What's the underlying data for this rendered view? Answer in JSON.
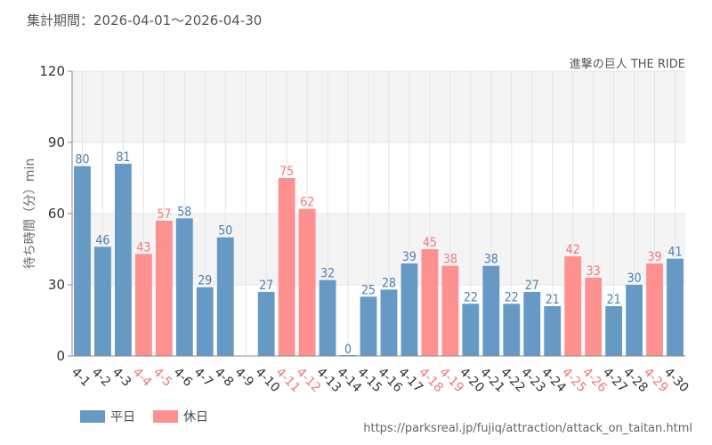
{
  "header": {
    "period": "集計期間：2026-04-01〜2026-04-30"
  },
  "source_url": "https://parksreal.jp/fujiq/attraction/attack_on_taitan.html",
  "colors": {
    "weekday": "#6699c4",
    "holiday": "#ff9090",
    "weekday_text": "#4a7eac",
    "holiday_text": "#f07878",
    "band": "#f4f4f4",
    "grid": "#e4e4e4"
  },
  "chart_data": {
    "type": "bar",
    "title": "進撃の巨人 THE RIDE",
    "ylabel": "待ち時間（分）min",
    "xlabel": "",
    "ylim": [
      0,
      120
    ],
    "yticks": [
      0,
      30,
      60,
      90,
      120
    ],
    "grid": true,
    "legend_placement": "bottom-left",
    "legend": [
      {
        "name": "平日",
        "color": "#6699c4"
      },
      {
        "name": "休日",
        "color": "#ff9090"
      }
    ],
    "categories": [
      "4-1",
      "4-2",
      "4-3",
      "4-4",
      "4-5",
      "4-6",
      "4-7",
      "4-8",
      "4-9",
      "4-10",
      "4-11",
      "4-12",
      "4-13",
      "4-14",
      "4-15",
      "4-16",
      "4-17",
      "4-18",
      "4-19",
      "4-20",
      "4-21",
      "4-22",
      "4-23",
      "4-24",
      "4-25",
      "4-26",
      "4-27",
      "4-28",
      "4-29",
      "4-30"
    ],
    "values": [
      80,
      46,
      81,
      43,
      57,
      58,
      29,
      50,
      null,
      27,
      75,
      62,
      32,
      0,
      25,
      28,
      39,
      45,
      38,
      22,
      38,
      22,
      27,
      21,
      42,
      33,
      21,
      30,
      39,
      41
    ],
    "day_type": [
      "平日",
      "平日",
      "平日",
      "休日",
      "休日",
      "平日",
      "平日",
      "平日",
      "平日",
      "平日",
      "休日",
      "休日",
      "平日",
      "平日",
      "平日",
      "平日",
      "平日",
      "休日",
      "休日",
      "平日",
      "平日",
      "平日",
      "平日",
      "平日",
      "休日",
      "休日",
      "平日",
      "平日",
      "休日",
      "平日"
    ]
  }
}
